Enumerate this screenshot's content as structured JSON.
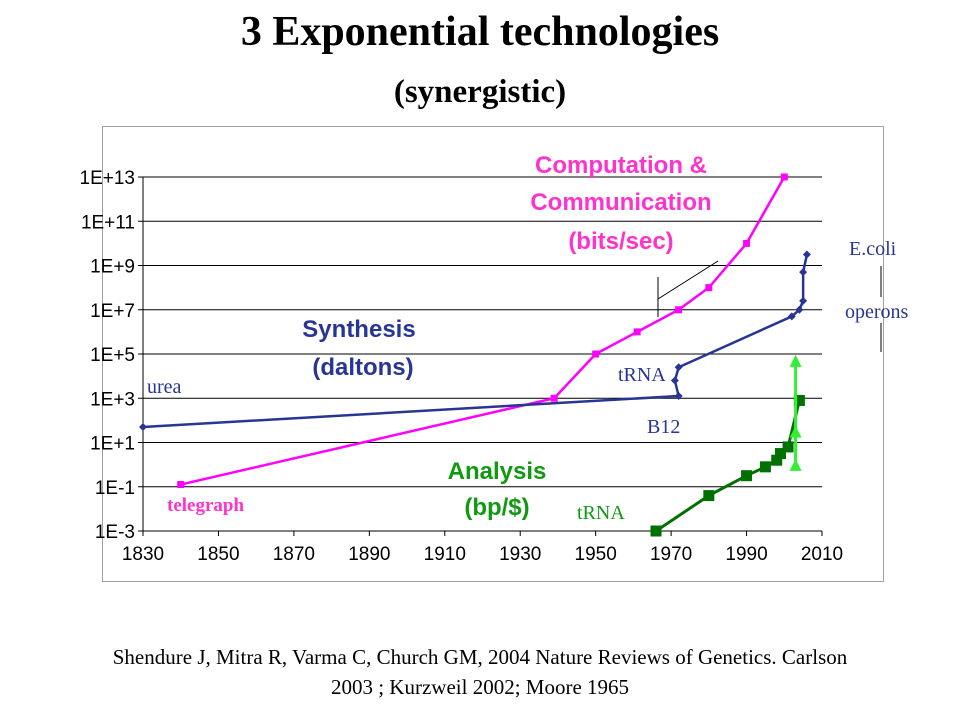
{
  "title": "3 Exponential technologies",
  "subtitle": "(synergistic)",
  "caption_line1": "Shendure J, Mitra R, Varma C, Church GM,  2004 Nature Reviews of Genetics. Carlson",
  "caption_line2": "2003 ;  Kurzweil 2002; Moore 1965",
  "chart_data": {
    "type": "line",
    "x_ticks": [
      "1830",
      "1850",
      "1870",
      "1890",
      "1910",
      "1930",
      "1950",
      "1970",
      "1990",
      "2010"
    ],
    "y_ticks": [
      "1E-3",
      "1E-1",
      "1E+1",
      "1E+3",
      "1E+5",
      "1E+7",
      "1E+9",
      "1E+11",
      "1E+13"
    ],
    "xlim": [
      1830,
      2010
    ],
    "ylim_log10": [
      -3,
      13
    ],
    "y_scale": "log",
    "grid": "horizontal",
    "series": [
      {
        "name": "Computation & Communication (bits/sec)",
        "color": "#ff00ff",
        "marker": "square-small",
        "points": [
          [
            1840,
            -0.9
          ],
          [
            1939,
            3.0
          ],
          [
            1950,
            5.0
          ],
          [
            1961,
            6.0
          ],
          [
            1972,
            7.0
          ],
          [
            1980,
            8.0
          ],
          [
            1990,
            10.0
          ],
          [
            2000,
            13.0
          ]
        ]
      },
      {
        "name": "Synthesis (daltons)",
        "color": "#283593",
        "marker": "diamond",
        "points": [
          [
            1830,
            1.7
          ],
          [
            1972,
            3.1
          ],
          [
            1971,
            3.8
          ],
          [
            1972,
            4.4
          ],
          [
            2002,
            6.7
          ],
          [
            2004,
            7.0
          ],
          [
            2005,
            7.4
          ],
          [
            2005,
            8.7
          ],
          [
            2006,
            9.5
          ]
        ]
      },
      {
        "name": "Analysis (bp/$)",
        "color": "#007000",
        "marker": "square",
        "points": [
          [
            1966,
            -3.0
          ],
          [
            1980,
            -1.4
          ],
          [
            1990,
            -0.5
          ],
          [
            1995,
            -0.1
          ],
          [
            1998,
            0.2
          ],
          [
            1999,
            0.5
          ],
          [
            2001,
            0.8
          ],
          [
            2004,
            2.9
          ]
        ]
      },
      {
        "name": "",
        "color": "#33ee33",
        "marker": "triangle",
        "points": [
          [
            2003,
            -0.1
          ],
          [
            2003,
            1.4
          ],
          [
            2003,
            4.6
          ]
        ]
      }
    ],
    "annotations": {
      "comp_line1": "Computation &",
      "comp_line2": "Communication",
      "comp_line3": "(bits/sec)",
      "synth_line1": "Synthesis",
      "synth_line2": "(daltons)",
      "analysis_line1": "Analysis",
      "analysis_line2": "(bp/$)",
      "urea": "urea",
      "trna_upper": "tRNA",
      "b12": "B12",
      "ecoli": "E.coli",
      "operons": "operons",
      "telegraph": "telegraph",
      "trna_lower": "tRNA"
    }
  }
}
